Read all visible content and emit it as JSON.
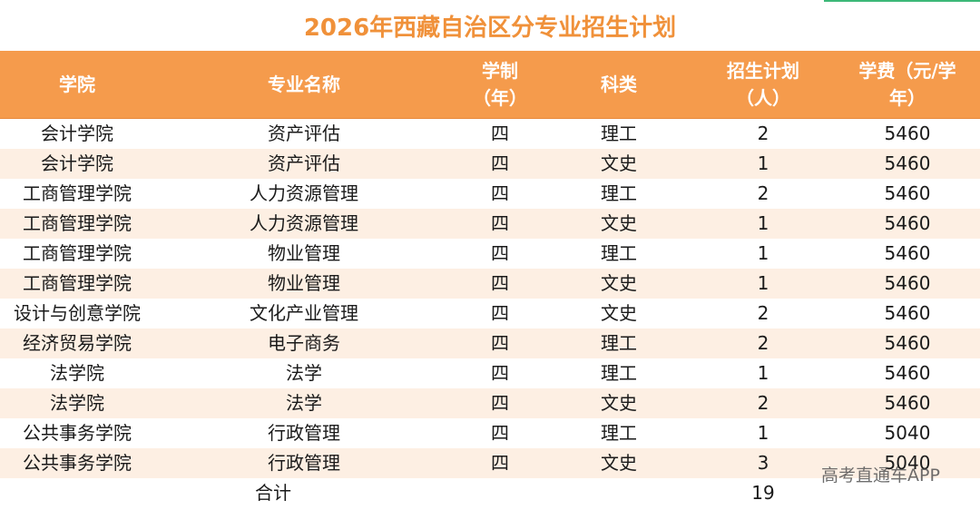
{
  "title": "2026年西藏自治区分专业招生计划",
  "headers": {
    "college": "学院",
    "major": "专业名称",
    "years_1": "学制",
    "years_2": "（年）",
    "category": "科类",
    "plan_1": "招生计划",
    "plan_2": "（人）",
    "fee_1": "学费（元/学",
    "fee_2": "年）"
  },
  "rows": [
    {
      "college": "会计学院",
      "major": "资产评估",
      "years": "四",
      "category": "理工",
      "plan": "2",
      "fee": "5460"
    },
    {
      "college": "会计学院",
      "major": "资产评估",
      "years": "四",
      "category": "文史",
      "plan": "1",
      "fee": "5460"
    },
    {
      "college": "工商管理学院",
      "major": "人力资源管理",
      "years": "四",
      "category": "理工",
      "plan": "2",
      "fee": "5460"
    },
    {
      "college": "工商管理学院",
      "major": "人力资源管理",
      "years": "四",
      "category": "文史",
      "plan": "1",
      "fee": "5460"
    },
    {
      "college": "工商管理学院",
      "major": "物业管理",
      "years": "四",
      "category": "理工",
      "plan": "1",
      "fee": "5460"
    },
    {
      "college": "工商管理学院",
      "major": "物业管理",
      "years": "四",
      "category": "文史",
      "plan": "1",
      "fee": "5460"
    },
    {
      "college": "设计与创意学院",
      "major": "文化产业管理",
      "years": "四",
      "category": "文史",
      "plan": "2",
      "fee": "5460"
    },
    {
      "college": "经济贸易学院",
      "major": "电子商务",
      "years": "四",
      "category": "理工",
      "plan": "2",
      "fee": "5460"
    },
    {
      "college": "法学院",
      "major": "法学",
      "years": "四",
      "category": "理工",
      "plan": "1",
      "fee": "5460"
    },
    {
      "college": "法学院",
      "major": "法学",
      "years": "四",
      "category": "文史",
      "plan": "2",
      "fee": "5460"
    },
    {
      "college": "公共事务学院",
      "major": "行政管理",
      "years": "四",
      "category": "理工",
      "plan": "1",
      "fee": "5040"
    },
    {
      "college": "公共事务学院",
      "major": "行政管理",
      "years": "四",
      "category": "文史",
      "plan": "3",
      "fee": "5040"
    }
  ],
  "total": {
    "label": "合计",
    "value": "19"
  },
  "watermark": "高考直通车APP"
}
